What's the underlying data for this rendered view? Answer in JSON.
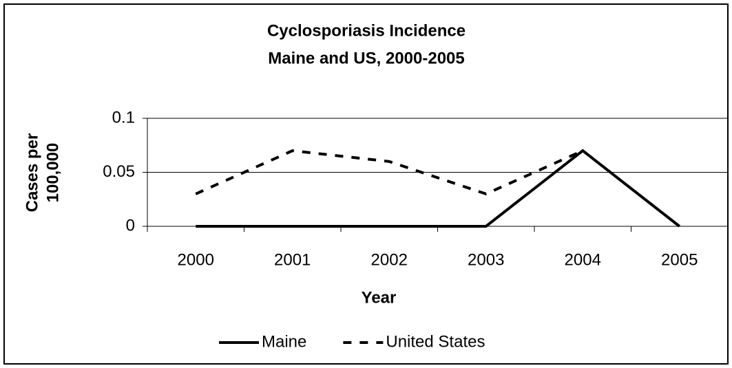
{
  "chart_data": {
    "type": "line",
    "title": [
      "Cyclosporiasis Incidence",
      "Maine and US, 2000-2005"
    ],
    "x_label": "Year",
    "y_label": [
      "Cases per",
      "100,000"
    ],
    "categories": [
      "2000",
      "2001",
      "2002",
      "2003",
      "2004",
      "2005"
    ],
    "series": [
      {
        "name": "Maine",
        "color": "#000000",
        "dash": "solid",
        "values": [
          0,
          0,
          0,
          0,
          0.07,
          0
        ]
      },
      {
        "name": "United States",
        "color": "#000000",
        "dash": "dashed",
        "values": [
          0.03,
          0.07,
          0.06,
          0.03,
          0.07,
          null
        ]
      }
    ],
    "ylim": [
      0,
      0.1
    ],
    "yticks": [
      0,
      0.05,
      0.1
    ],
    "grid": true,
    "legend": "bottom"
  }
}
